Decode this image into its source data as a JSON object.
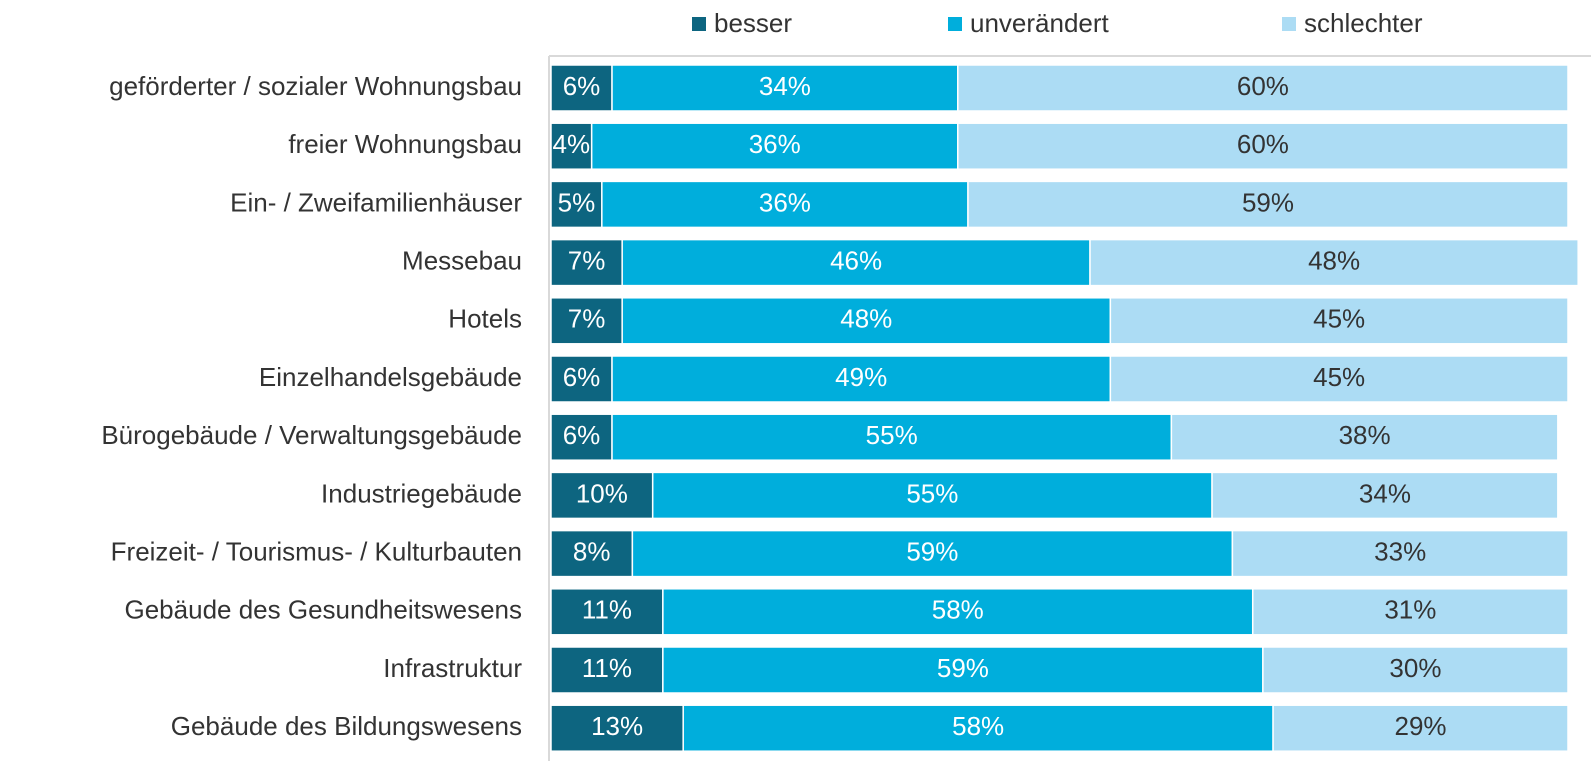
{
  "chart_data": {
    "type": "stacked_bar_horizontal",
    "categories": [
      "geförderter / sozialer Wohnungsbau",
      "freier Wohnungsbau",
      "Ein- / Zweifamilienhäuser",
      "Messebau",
      "Hotels",
      "Einzelhandelsgebäude",
      "Bürogebäude / Verwaltungsgebäude",
      "Industriegebäude",
      "Freizeit- / Tourismus- / Kulturbauten",
      "Gebäude des Gesundheitswesens",
      "Infrastruktur",
      "Gebäude des Bildungswesens"
    ],
    "series": [
      {
        "name": "besser",
        "color": "#0d6580",
        "label_color": "#ffffff",
        "values": [
          6,
          4,
          5,
          7,
          7,
          6,
          6,
          10,
          8,
          11,
          11,
          13
        ],
        "value_labels": [
          "6%",
          "4%",
          "5%",
          "7%",
          "7%",
          "6%",
          "6%",
          "10%",
          "8%",
          "11%",
          "11%",
          "13%"
        ]
      },
      {
        "name": "unverändert",
        "color": "#00aedc",
        "label_color": "#ffffff",
        "values": [
          34,
          36,
          36,
          46,
          48,
          49,
          55,
          55,
          59,
          58,
          59,
          58
        ],
        "value_labels": [
          "34%",
          "36%",
          "36%",
          "46%",
          "48%",
          "49%",
          "55%",
          "55%",
          "59%",
          "58%",
          "59%",
          "58%"
        ]
      },
      {
        "name": "schlechter",
        "color": "#acdcf4",
        "label_color": "#333333",
        "values": [
          60,
          60,
          59,
          48,
          45,
          45,
          38,
          34,
          33,
          31,
          30,
          29
        ],
        "value_labels": [
          "60%",
          "60%",
          "59%",
          "48%",
          "45%",
          "45%",
          "38%",
          "34%",
          "33%",
          "31%",
          "30%",
          "29%"
        ]
      }
    ],
    "xlim": [
      0,
      100
    ],
    "legend": "top"
  }
}
